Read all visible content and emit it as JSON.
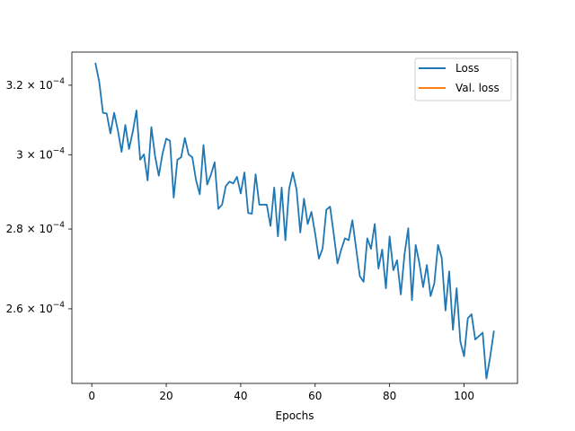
{
  "chart_data": {
    "type": "line",
    "title": "",
    "xlabel": "Epochs",
    "ylabel": "",
    "yscale": "log",
    "xlim": [
      -5.35,
      114.35
    ],
    "ylim": [
      0.0002426,
      0.00033
    ],
    "grid": false,
    "legend_position": "top-right",
    "x_ticks": [
      0,
      20,
      40,
      60,
      80,
      100
    ],
    "x_tick_labels": [
      "0",
      "20",
      "40",
      "60",
      "80",
      "100"
    ],
    "y_ticks": [
      {
        "value": 0.00026,
        "mantissa": "2.6",
        "exponent": "−4"
      },
      {
        "value": 0.00028,
        "mantissa": "2.8",
        "exponent": "−4"
      },
      {
        "value": 0.0003,
        "mantissa": "3",
        "exponent": "−4"
      },
      {
        "value": 0.00032,
        "mantissa": "3.2",
        "exponent": "−4"
      }
    ],
    "series": [
      {
        "name": "Loss",
        "color": "#1f77b4",
        "x": [
          1,
          2,
          3,
          4,
          5,
          6,
          7,
          8,
          9,
          10,
          11,
          12,
          13,
          14,
          15,
          16,
          17,
          18,
          19,
          20,
          21,
          22,
          23,
          24,
          25,
          26,
          27,
          28,
          29,
          30,
          31,
          32,
          33,
          34,
          35,
          36,
          37,
          38,
          39,
          40,
          41,
          42,
          43,
          44,
          45,
          46,
          47,
          48,
          49,
          50,
          51,
          52,
          53,
          54,
          55,
          56,
          57,
          58,
          59,
          60,
          61,
          62,
          63,
          64,
          65,
          66,
          67,
          68,
          69,
          70,
          71,
          72,
          73,
          74,
          75,
          76,
          77,
          78,
          79,
          80,
          81,
          82,
          83,
          84,
          85,
          86,
          87,
          88,
          89,
          90,
          91,
          92,
          93,
          94,
          95,
          96,
          97,
          98,
          99,
          100,
          101,
          102,
          103,
          104,
          105,
          106,
          107,
          108
        ],
        "y": [
          0.0003265,
          0.000321,
          0.0003119,
          0.0003117,
          0.000306,
          0.0003119,
          0.0003069,
          0.0003008,
          0.0003084,
          0.0003016,
          0.0003064,
          0.0003126,
          0.0002986,
          0.0003001,
          0.0002929,
          0.0003078,
          0.0002996,
          0.0002942,
          0.0003003,
          0.0003045,
          0.0003039,
          0.0002883,
          0.0002986,
          0.0002993,
          0.0003047,
          0.0003001,
          0.0002993,
          0.000293,
          0.0002892,
          0.0003027,
          0.0002918,
          0.0002945,
          0.0002979,
          0.0002853,
          0.0002864,
          0.0002914,
          0.0002926,
          0.0002921,
          0.0002939,
          0.0002894,
          0.0002951,
          0.0002842,
          0.000284,
          0.0002946,
          0.0002864,
          0.0002864,
          0.0002864,
          0.0002808,
          0.000291,
          0.0002781,
          0.000291,
          0.0002771,
          0.0002906,
          0.0002951,
          0.0002905,
          0.0002791,
          0.000288,
          0.0002813,
          0.0002845,
          0.0002788,
          0.0002724,
          0.000275,
          0.000285,
          0.0002859,
          0.0002786,
          0.0002712,
          0.0002747,
          0.0002776,
          0.0002771,
          0.0002823,
          0.000275,
          0.000268,
          0.0002666,
          0.0002776,
          0.0002749,
          0.0002813,
          0.0002699,
          0.0002747,
          0.000265,
          0.0002781,
          0.0002695,
          0.000272,
          0.0002635,
          0.0002735,
          0.0002802,
          0.0002621,
          0.0002759,
          0.0002712,
          0.0002653,
          0.0002708,
          0.0002631,
          0.0002662,
          0.0002759,
          0.0002726,
          0.0002596,
          0.0002692,
          0.000255,
          0.000265,
          0.0002522,
          0.0002488,
          0.0002577,
          0.0002587,
          0.0002527,
          0.0002535,
          0.0002543,
          0.0002437,
          0.0002486,
          0.0002546
        ]
      },
      {
        "name": "Val. loss",
        "color": "#ff7f0e",
        "x": [],
        "y": []
      }
    ]
  }
}
